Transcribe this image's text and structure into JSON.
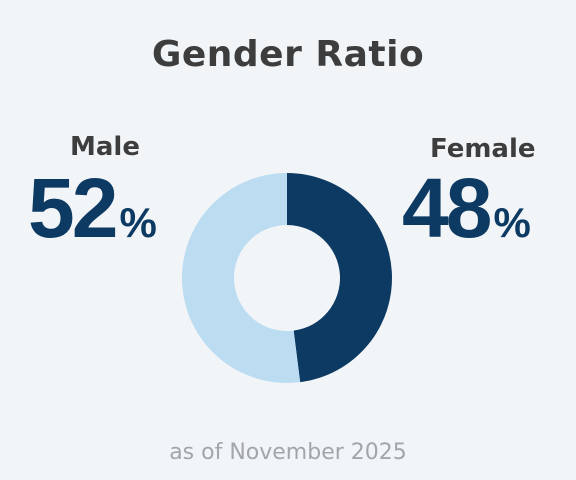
{
  "chart_data": {
    "type": "pie",
    "title": "Gender Ratio",
    "categories": [
      "Male",
      "Female"
    ],
    "values": [
      52,
      48
    ],
    "value_suffix": "%",
    "colors": {
      "Male": "#bcdcf2",
      "Female": "#0d3a63"
    },
    "style": "donut",
    "footnote": "as of November 2025"
  }
}
